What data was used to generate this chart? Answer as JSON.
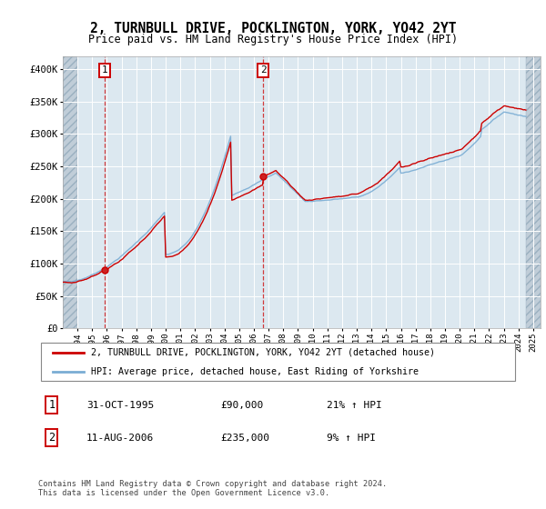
{
  "title": "2, TURNBULL DRIVE, POCKLINGTON, YORK, YO42 2YT",
  "subtitle": "Price paid vs. HM Land Registry's House Price Index (HPI)",
  "ylim": [
    0,
    420000
  ],
  "xlim_start": 1993.0,
  "xlim_end": 2025.5,
  "sale1_x": 1995.83,
  "sale1_y": 90000,
  "sale2_x": 2006.62,
  "sale2_y": 235000,
  "line_color_sale": "#cc0000",
  "line_color_hpi": "#7aadd4",
  "plot_bg": "#dce8f0",
  "grid_color": "#ffffff",
  "hatch_color": "#c0cdd8",
  "legend_label1": "2, TURNBULL DRIVE, POCKLINGTON, YORK, YO42 2YT (detached house)",
  "legend_label2": "HPI: Average price, detached house, East Riding of Yorkshire",
  "footnote": "Contains HM Land Registry data © Crown copyright and database right 2024.\nThis data is licensed under the Open Government Licence v3.0.",
  "table_entries": [
    {
      "num": "1",
      "date": "31-OCT-1995",
      "price": "£90,000",
      "hpi": "21% ↑ HPI"
    },
    {
      "num": "2",
      "date": "11-AUG-2006",
      "price": "£235,000",
      "hpi": "9% ↑ HPI"
    }
  ],
  "hpi_data_x": [
    1993.0,
    1993.083,
    1993.167,
    1993.25,
    1993.333,
    1993.417,
    1993.5,
    1993.583,
    1993.667,
    1993.75,
    1993.833,
    1993.917,
    1994.0,
    1994.083,
    1994.167,
    1994.25,
    1994.333,
    1994.417,
    1994.5,
    1994.583,
    1994.667,
    1994.75,
    1994.833,
    1994.917,
    1995.0,
    1995.083,
    1995.167,
    1995.25,
    1995.333,
    1995.417,
    1995.5,
    1995.583,
    1995.667,
    1995.75,
    1995.833,
    1995.917,
    1996.0,
    1996.083,
    1996.167,
    1996.25,
    1996.333,
    1996.417,
    1996.5,
    1996.583,
    1996.667,
    1996.75,
    1996.833,
    1996.917,
    1997.0,
    1997.083,
    1997.167,
    1997.25,
    1997.333,
    1997.417,
    1997.5,
    1997.583,
    1997.667,
    1997.75,
    1997.833,
    1997.917,
    1998.0,
    1998.083,
    1998.167,
    1998.25,
    1998.333,
    1998.417,
    1998.5,
    1998.583,
    1998.667,
    1998.75,
    1998.833,
    1998.917,
    1999.0,
    1999.083,
    1999.167,
    1999.25,
    1999.333,
    1999.417,
    1999.5,
    1999.583,
    1999.667,
    1999.75,
    1999.833,
    1999.917,
    2000.0,
    2000.083,
    2000.167,
    2000.25,
    2000.333,
    2000.417,
    2000.5,
    2000.583,
    2000.667,
    2000.75,
    2000.833,
    2000.917,
    2001.0,
    2001.083,
    2001.167,
    2001.25,
    2001.333,
    2001.417,
    2001.5,
    2001.583,
    2001.667,
    2001.75,
    2001.833,
    2001.917,
    2002.0,
    2002.083,
    2002.167,
    2002.25,
    2002.333,
    2002.417,
    2002.5,
    2002.583,
    2002.667,
    2002.75,
    2002.833,
    2002.917,
    2003.0,
    2003.083,
    2003.167,
    2003.25,
    2003.333,
    2003.417,
    2003.5,
    2003.583,
    2003.667,
    2003.75,
    2003.833,
    2003.917,
    2004.0,
    2004.083,
    2004.167,
    2004.25,
    2004.333,
    2004.417,
    2004.5,
    2004.583,
    2004.667,
    2004.75,
    2004.833,
    2004.917,
    2005.0,
    2005.083,
    2005.167,
    2005.25,
    2005.333,
    2005.417,
    2005.5,
    2005.583,
    2005.667,
    2005.75,
    2005.833,
    2005.917,
    2006.0,
    2006.083,
    2006.167,
    2006.25,
    2006.333,
    2006.417,
    2006.5,
    2006.583,
    2006.667,
    2006.75,
    2006.833,
    2006.917,
    2007.0,
    2007.083,
    2007.167,
    2007.25,
    2007.333,
    2007.417,
    2007.5,
    2007.583,
    2007.667,
    2007.75,
    2007.833,
    2007.917,
    2008.0,
    2008.083,
    2008.167,
    2008.25,
    2008.333,
    2008.417,
    2008.5,
    2008.583,
    2008.667,
    2008.75,
    2008.833,
    2008.917,
    2009.0,
    2009.083,
    2009.167,
    2009.25,
    2009.333,
    2009.417,
    2009.5,
    2009.583,
    2009.667,
    2009.75,
    2009.833,
    2009.917,
    2010.0,
    2010.083,
    2010.167,
    2010.25,
    2010.333,
    2010.417,
    2010.5,
    2010.583,
    2010.667,
    2010.75,
    2010.833,
    2010.917,
    2011.0,
    2011.083,
    2011.167,
    2011.25,
    2011.333,
    2011.417,
    2011.5,
    2011.583,
    2011.667,
    2011.75,
    2011.833,
    2011.917,
    2012.0,
    2012.083,
    2012.167,
    2012.25,
    2012.333,
    2012.417,
    2012.5,
    2012.583,
    2012.667,
    2012.75,
    2012.833,
    2012.917,
    2013.0,
    2013.083,
    2013.167,
    2013.25,
    2013.333,
    2013.417,
    2013.5,
    2013.583,
    2013.667,
    2013.75,
    2013.833,
    2013.917,
    2014.0,
    2014.083,
    2014.167,
    2014.25,
    2014.333,
    2014.417,
    2014.5,
    2014.583,
    2014.667,
    2014.75,
    2014.833,
    2014.917,
    2015.0,
    2015.083,
    2015.167,
    2015.25,
    2015.333,
    2015.417,
    2015.5,
    2015.583,
    2015.667,
    2015.75,
    2015.833,
    2015.917,
    2016.0,
    2016.083,
    2016.167,
    2016.25,
    2016.333,
    2016.417,
    2016.5,
    2016.583,
    2016.667,
    2016.75,
    2016.833,
    2016.917,
    2017.0,
    2017.083,
    2017.167,
    2017.25,
    2017.333,
    2017.417,
    2017.5,
    2017.583,
    2017.667,
    2017.75,
    2017.833,
    2017.917,
    2018.0,
    2018.083,
    2018.167,
    2018.25,
    2018.333,
    2018.417,
    2018.5,
    2018.583,
    2018.667,
    2018.75,
    2018.833,
    2018.917,
    2019.0,
    2019.083,
    2019.167,
    2019.25,
    2019.333,
    2019.417,
    2019.5,
    2019.583,
    2019.667,
    2019.75,
    2019.833,
    2019.917,
    2020.0,
    2020.083,
    2020.167,
    2020.25,
    2020.333,
    2020.417,
    2020.5,
    2020.583,
    2020.667,
    2020.75,
    2020.833,
    2020.917,
    2021.0,
    2021.083,
    2021.167,
    2021.25,
    2021.333,
    2021.417,
    2021.5,
    2021.583,
    2021.667,
    2021.75,
    2021.833,
    2021.917,
    2022.0,
    2022.083,
    2022.167,
    2022.25,
    2022.333,
    2022.417,
    2022.5,
    2022.583,
    2022.667,
    2022.75,
    2022.833,
    2022.917,
    2023.0,
    2023.083,
    2023.167,
    2023.25,
    2023.333,
    2023.417,
    2023.5,
    2023.583,
    2023.667,
    2023.75,
    2023.833,
    2023.917,
    2024.0,
    2024.083,
    2024.167,
    2024.25,
    2024.333,
    2024.417,
    2024.5
  ]
}
